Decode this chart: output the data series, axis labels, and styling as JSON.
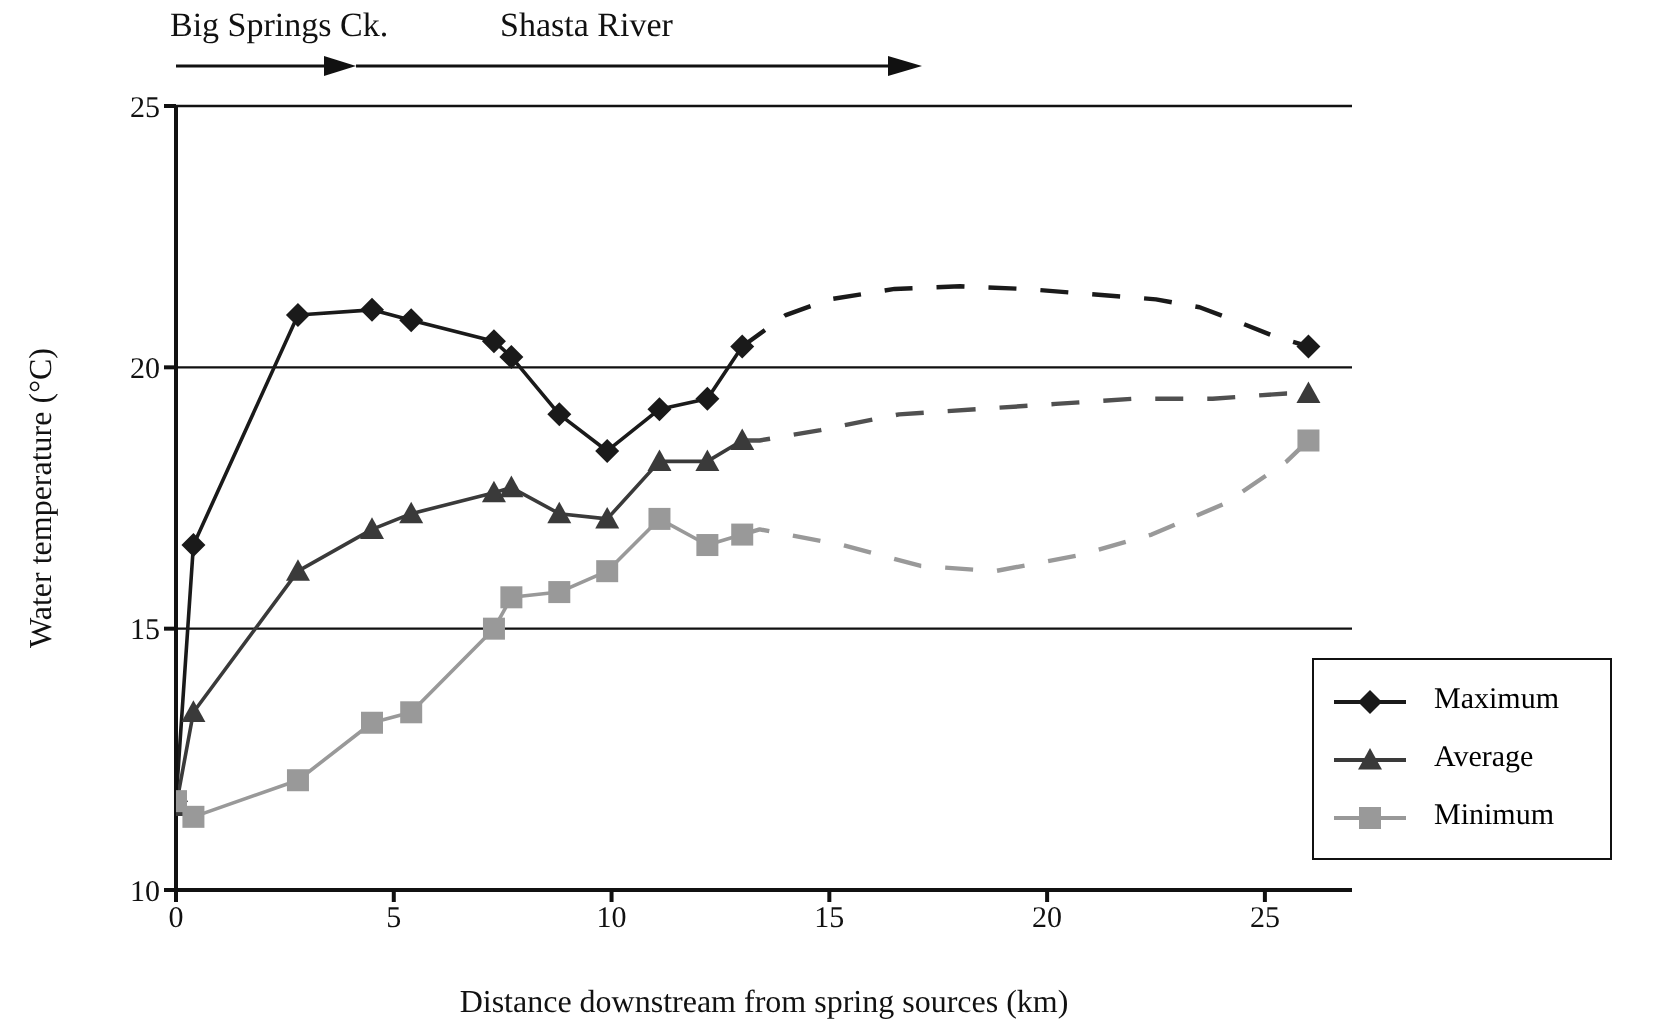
{
  "chart_data": {
    "type": "line",
    "xlabel": "Distance downstream from spring sources (km)",
    "ylabel": "Water temperature (°C)",
    "annotations": [
      "Big Springs Ck.",
      "Shasta River"
    ],
    "xlim": [
      0,
      27
    ],
    "xticks": [
      0,
      5,
      10,
      15,
      20,
      25
    ],
    "ylim": [
      10,
      25
    ],
    "yticks": [
      10,
      15,
      20,
      25
    ],
    "grid": "y",
    "legend": "bottom right",
    "line_style": "solid",
    "series": [
      {
        "name": "Maximum",
        "color": "#1a1a1a",
        "marker": "diamond",
        "x": [
          0,
          0.4,
          2.8,
          4.5,
          5.4,
          7.3,
          7.7,
          8.8,
          9.9,
          11.1,
          12.2,
          13.0,
          19.5,
          26.0
        ],
        "values": [
          11.7,
          16.6,
          21.0,
          21.1,
          20.9,
          20.5,
          20.2,
          19.1,
          18.4,
          19.2,
          19.4,
          20.4,
          null,
          20.4
        ]
      },
      {
        "name": "Average",
        "color": "#3a3a3a",
        "marker": "triangle",
        "x": [
          0,
          0.4,
          2.8,
          4.5,
          5.4,
          7.3,
          7.7,
          8.8,
          9.9,
          11.1,
          12.2,
          13.0,
          19.5,
          26.0
        ],
        "values": [
          11.6,
          13.4,
          16.1,
          16.9,
          17.2,
          17.6,
          17.7,
          17.2,
          17.1,
          18.2,
          18.2,
          18.6,
          null,
          19.5
        ]
      },
      {
        "name": "Minimum",
        "color": "#999999",
        "marker": "square",
        "x": [
          0,
          0.4,
          2.8,
          4.5,
          5.4,
          7.3,
          7.7,
          8.8,
          9.9,
          11.1,
          12.2,
          13.0,
          19.5,
          26.0
        ],
        "values": [
          11.7,
          11.4,
          12.1,
          13.2,
          13.4,
          15.0,
          15.6,
          15.7,
          16.1,
          17.1,
          16.6,
          16.8,
          null,
          18.6
        ]
      },
      {
        "type": "line",
        "color": "#1a1a1a",
        "marker": "none",
        "line_style": "dashed",
        "x": [
          13.0,
          13.5,
          14.0,
          15.0,
          16.5,
          18.0,
          19.5,
          21.0,
          22.5,
          23.5,
          24.3,
          25.2,
          26.0
        ],
        "values": [
          20.4,
          20.7,
          21.0,
          21.3,
          21.5,
          21.55,
          21.5,
          21.4,
          21.3,
          21.15,
          20.9,
          20.6,
          20.4
        ]
      },
      {
        "type": "line",
        "color": "#505050",
        "marker": "none",
        "line_style": "dashed",
        "x": [
          13.0,
          13.4,
          14.8,
          16.6,
          18.4,
          20.2,
          22.0,
          23.8,
          25.5,
          26.0
        ],
        "values": [
          18.6,
          18.6,
          18.8,
          19.1,
          19.2,
          19.3,
          19.4,
          19.4,
          19.5,
          19.5
        ]
      },
      {
        "type": "line",
        "color": "#999999",
        "marker": "none",
        "line_style": "dashed",
        "x": [
          13.0,
          13.4,
          15.3,
          17.1,
          18.8,
          20.7,
          22.4,
          24.1,
          25.5,
          26.0
        ],
        "values": [
          16.8,
          16.9,
          16.6,
          16.2,
          16.1,
          16.4,
          16.8,
          17.4,
          18.2,
          18.6
        ]
      }
    ]
  }
}
